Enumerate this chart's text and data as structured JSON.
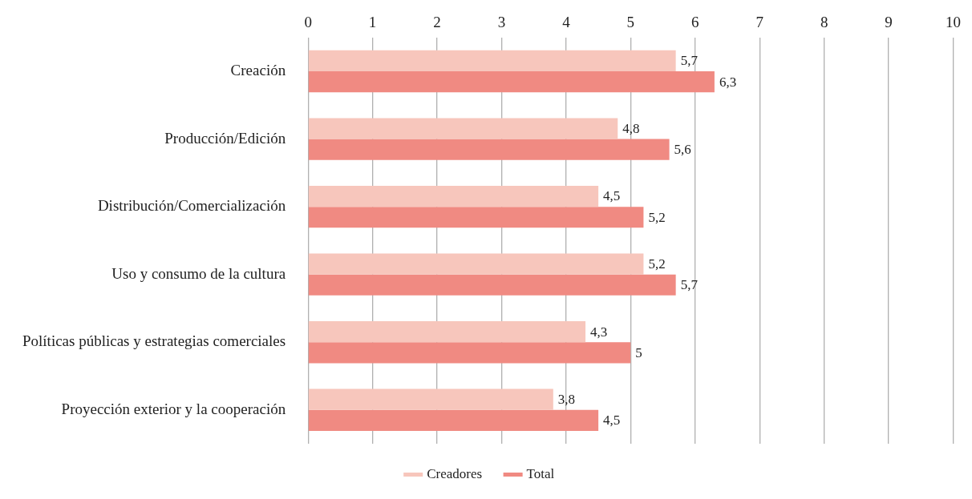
{
  "chart_data": {
    "type": "bar",
    "orientation": "horizontal",
    "categories": [
      "Creación",
      "Producción/Edición",
      "Distribución/Comercialización",
      "Uso y consumo de la cultura",
      "Políticas públicas y estrategias comerciales",
      "Proyección exterior y la cooperación"
    ],
    "series": [
      {
        "name": "Creadores",
        "color": "#f7c6bc",
        "values": [
          5.7,
          4.8,
          4.5,
          5.2,
          4.3,
          3.8
        ],
        "value_labels": [
          "5,7",
          "4,8",
          "4,5",
          "5,2",
          "4,3",
          "3,8"
        ]
      },
      {
        "name": "Total",
        "color": "#f08a82",
        "values": [
          6.3,
          5.6,
          5.2,
          5.7,
          5,
          4.5
        ],
        "value_labels": [
          "6,3",
          "5,6",
          "5,2",
          "5,7",
          "5",
          "4,5"
        ]
      }
    ],
    "xlim": [
      0,
      10
    ],
    "xticks": [
      0,
      1,
      2,
      3,
      4,
      5,
      6,
      7,
      8,
      9,
      10
    ],
    "grid": "x",
    "legend": "bottom"
  }
}
